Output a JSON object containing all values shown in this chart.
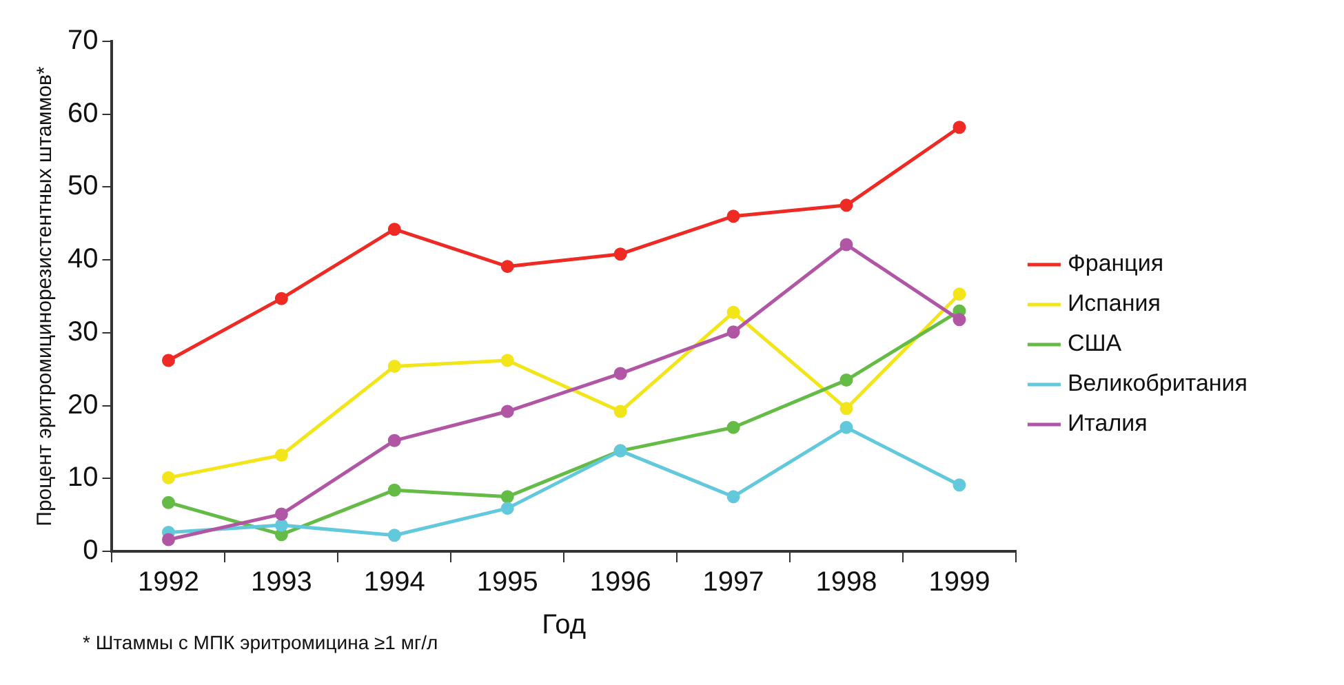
{
  "chart_data": {
    "type": "line",
    "xlabel": "Год",
    "ylabel": "Процент эритромицинорезистентных штаммов*",
    "categories": [
      "1992",
      "1993",
      "1994",
      "1995",
      "1996",
      "1997",
      "1998",
      "1999"
    ],
    "series": [
      {
        "name": "Франция",
        "color": "#ee2a24",
        "values": [
          26.2,
          34.7,
          44.2,
          39.1,
          40.8,
          46,
          47.5,
          58.2
        ]
      },
      {
        "name": "Испания",
        "color": "#f2e51a",
        "values": [
          10.1,
          13.2,
          25.4,
          26.2,
          19.2,
          32.8,
          19.6,
          35.3
        ]
      },
      {
        "name": "США",
        "color": "#64bb46",
        "values": [
          6.7,
          2.3,
          8.4,
          7.5,
          13.8,
          17,
          23.5,
          33
        ]
      },
      {
        "name": "Великобритания",
        "color": "#62c8dc",
        "values": [
          2.6,
          3.6,
          2.2,
          5.9,
          13.8,
          7.5,
          17,
          9.1
        ]
      },
      {
        "name": "Италия",
        "color": "#b156a5",
        "values": [
          1.6,
          5.1,
          15.2,
          19.2,
          24.4,
          30.1,
          42.1,
          31.8
        ]
      }
    ],
    "ylim": [
      0,
      70
    ],
    "yticks": [
      0,
      10,
      20,
      30,
      40,
      50,
      60,
      70
    ],
    "grid": false,
    "legend": "right",
    "marker": "circle",
    "line_style": "solid",
    "annotations": [
      "* Штаммы с МПК эритромицина ≥1 мг/л"
    ]
  }
}
